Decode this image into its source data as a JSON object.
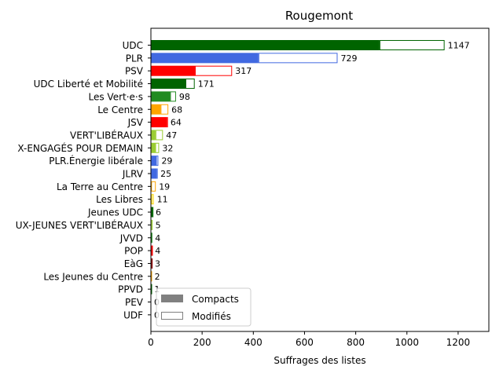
{
  "chart_data": {
    "type": "bar",
    "orientation": "horizontal",
    "stacked": true,
    "title": "Rougemont",
    "xlabel": "Suffrages des listes",
    "ylabel": "",
    "xlim": [
      0,
      1320
    ],
    "xticks": [
      "0",
      "200",
      "400",
      "600",
      "800",
      "1000",
      "1200"
    ],
    "grid": false,
    "legend": {
      "position": "lower-left",
      "entries": [
        {
          "label": "Compacts",
          "style": "filled",
          "color": "#808080"
        },
        {
          "label": "Modifiés",
          "style": "outline",
          "color": "#808080"
        }
      ]
    },
    "categories": [
      "UDC",
      "PLR",
      "PSV",
      "UDC Liberté et Mobilité",
      "Les Vert·e·s",
      "Le Centre",
      "JSV",
      "VERT'LIBÉRAUX",
      "X-ENGAGÉS POUR DEMAIN",
      "PLR.Énergie libérale",
      "JLRV",
      "La Terre au Centre",
      "Les Libres",
      "Jeunes UDC",
      "UX-JEUNES VERT'LIBÉRAUX",
      "JVVD",
      "POP",
      "EàG",
      "Les Jeunes du Centre",
      "PPVD",
      "PEV",
      "UDF"
    ],
    "totals": [
      1147,
      729,
      317,
      171,
      98,
      68,
      64,
      47,
      32,
      29,
      25,
      19,
      11,
      6,
      5,
      4,
      4,
      3,
      2,
      1,
      0,
      0
    ],
    "total_labels": [
      "1147",
      "729",
      "317",
      "171",
      "98",
      "68",
      "64",
      "47",
      "32",
      "29",
      "25",
      "19",
      "11",
      "6",
      "5",
      "4",
      "4",
      "3",
      "2",
      "1",
      "0",
      "0"
    ],
    "series": [
      {
        "name": "Compacts",
        "values": [
          893,
          420,
          172,
          135,
          75,
          38,
          62,
          18,
          17,
          20,
          22,
          1,
          2,
          5,
          2,
          1,
          3,
          2,
          0,
          0,
          0,
          0
        ]
      },
      {
        "name": "Modifiés",
        "values": [
          254,
          309,
          145,
          36,
          23,
          30,
          2,
          29,
          15,
          9,
          3,
          18,
          9,
          1,
          3,
          3,
          1,
          1,
          2,
          1,
          0,
          0
        ]
      }
    ],
    "colors": [
      "#006400",
      "#4169e1",
      "#ff0000",
      "#006400",
      "#228b22",
      "#ffa500",
      "#ff0000",
      "#9acd32",
      "#9acd32",
      "#4169e1",
      "#4169e1",
      "#ffa500",
      "#ffd700",
      "#006400",
      "#9acd32",
      "#228b22",
      "#ff0000",
      "#8b0000",
      "#ffa500",
      "#006400",
      "#ffd700",
      "#4169e1"
    ]
  }
}
